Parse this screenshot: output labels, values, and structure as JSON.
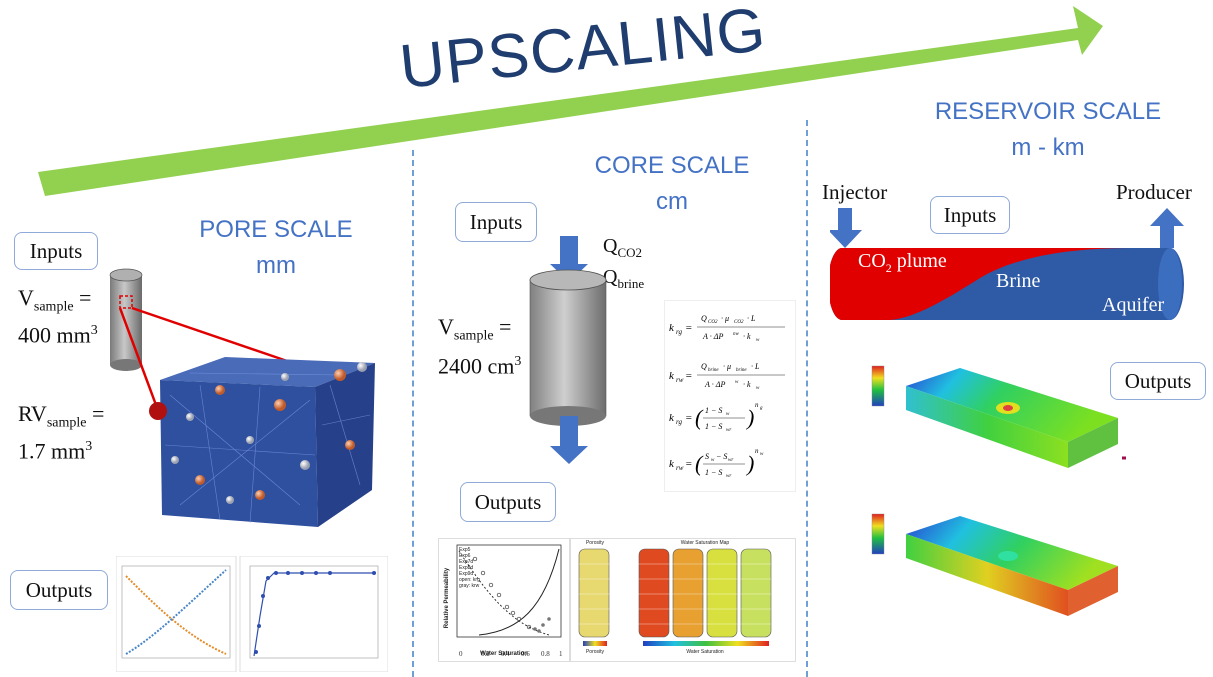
{
  "title": "UPSCALING",
  "pore": {
    "title": "PORE SCALE",
    "unit": "mm",
    "inputs": "Inputs",
    "outputs": "Outputs",
    "v_label": "V",
    "v_sub": "sample",
    "v_value": "400 mm",
    "rv_label": "RV",
    "rv_sub": "sample",
    "rv_value": "1.7 mm"
  },
  "core": {
    "title": "CORE SCALE",
    "unit": "cm",
    "inputs": "Inputs",
    "outputs": "Outputs",
    "q1": "Q",
    "q1_sub": "CO2",
    "q2": "Q",
    "q2_sub": "brine",
    "v_label": "V",
    "v_sub": "sample",
    "v_value": "2400 cm"
  },
  "reservoir": {
    "title": "RESERVOIR SCALE",
    "unit": "m - km",
    "inputs": "Inputs",
    "outputs": "Outputs",
    "injector": "Injector",
    "producer": "Producer",
    "plume": "CO",
    "plume_sub": "2",
    "plume_rest": " plume",
    "brine": "Brine",
    "aquifer": "Aquifer"
  },
  "charts": {
    "core_left": {
      "xlabel": "Water Saturation",
      "ylabel": "Relative Permeability",
      "legend": [
        "Exp5",
        "Exp6",
        "Exp7d",
        "Exp8d",
        "Exp9d"
      ],
      "note1": "open: krg",
      "note2": "gray: krw"
    },
    "core_right": {
      "title_left": "Porosity",
      "title_right": "Water Saturation Map",
      "xlabel_left": "Porosity",
      "xlabel_right": "Water Saturation"
    }
  },
  "colors": {
    "arrow": "#92d050",
    "scale_title": "#4472c4",
    "title": "#1f3d6e",
    "co2": "#e00000",
    "brine": "#2e5aa6",
    "divider": "#6f9fd4"
  }
}
